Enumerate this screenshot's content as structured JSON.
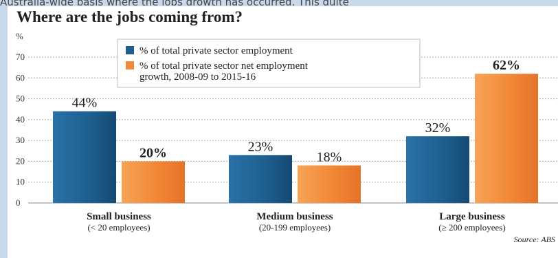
{
  "page": {
    "top_caption": "Australia-wide basis where the jobs growth has occurred. This quite"
  },
  "chart_data": {
    "type": "bar",
    "title": "Where are the jobs coming from?",
    "ylabel": "%",
    "ylim": [
      0,
      70
    ],
    "yticks": [
      "0",
      "10",
      "20",
      "30",
      "40",
      "50",
      "60",
      "70"
    ],
    "grid": true,
    "legend_position": "top-center",
    "source": "Source: ABS",
    "categories": [
      "Small business",
      "Medium business",
      "Large business"
    ],
    "category_sublabels": [
      "(< 20 employees)",
      "(20-199 employees)",
      "(≥ 200 employees)"
    ],
    "series": [
      {
        "name": "% of total private sector employment",
        "color": "#1e5f8f",
        "values": [
          44,
          23,
          32
        ],
        "labels": [
          "44%",
          "23%",
          "32%"
        ]
      },
      {
        "name": "% of total private sector net employment growth, 2008-09 to 2015-16",
        "legend_lines": [
          "% of total private sector net employment",
          "growth, 2008-09 to 2015-16"
        ],
        "color": "#f08a3a",
        "values": [
          20,
          18,
          62
        ],
        "labels": [
          "20%",
          "18%",
          "62%"
        ]
      }
    ]
  }
}
